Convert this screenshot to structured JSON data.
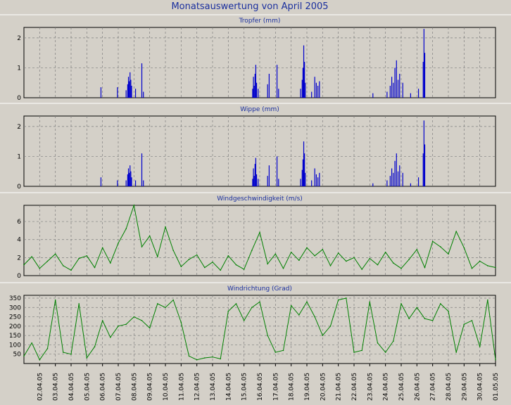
{
  "window": {
    "title": "Monatsauswertung von April 2005"
  },
  "colors": {
    "background": "#d4d0c8",
    "title": "#1a2f9e",
    "rain": "#0000cc",
    "wind": "#008000",
    "grid": "#7f7f7f"
  },
  "x_axis": {
    "labels": [
      "02.04.05",
      "03.04.05",
      "04.04.05",
      "05.04.05",
      "06.04.05",
      "07.04.05",
      "08.04.05",
      "09.04.05",
      "10.04.05",
      "11.04.05",
      "12.04.05",
      "13.04.05",
      "14.04.05",
      "15.04.05",
      "16.04.05",
      "17.04.05",
      "18.04.05",
      "19.04.05",
      "20.04.05",
      "21.04.05",
      "22.04.05",
      "23.04.05",
      "24.04.05",
      "25.04.05",
      "26.04.05",
      "27.04.05",
      "28.04.05",
      "29.04.05",
      "30.04.05",
      "01.05.05"
    ]
  },
  "chart_data": [
    {
      "type": "bar",
      "title": "Tropfer (mm)",
      "ylim": [
        0,
        2.35
      ],
      "yticks": [
        0,
        1,
        2
      ],
      "grid": true,
      "color": "#0000cc",
      "x_unit": "days since 01.04.05 00:00",
      "events": [
        [
          4.9,
          0.35
        ],
        [
          5.95,
          0.35
        ],
        [
          6.5,
          0.25
        ],
        [
          6.6,
          0.45
        ],
        [
          6.65,
          0.7
        ],
        [
          6.7,
          0.55
        ],
        [
          6.75,
          0.85
        ],
        [
          6.8,
          0.6
        ],
        [
          6.85,
          0.4
        ],
        [
          7.1,
          0.3
        ],
        [
          7.5,
          1.15
        ],
        [
          7.6,
          0.2
        ],
        [
          14.55,
          0.3
        ],
        [
          14.6,
          0.7
        ],
        [
          14.65,
          0.4
        ],
        [
          14.7,
          0.8
        ],
        [
          14.75,
          1.1
        ],
        [
          14.8,
          0.5
        ],
        [
          14.9,
          0.3
        ],
        [
          15.5,
          0.45
        ],
        [
          15.6,
          0.8
        ],
        [
          16.1,
          1.1
        ],
        [
          16.2,
          0.3
        ],
        [
          17.6,
          0.3
        ],
        [
          17.7,
          0.6
        ],
        [
          17.75,
          1.0
        ],
        [
          17.8,
          1.75
        ],
        [
          17.85,
          1.2
        ],
        [
          17.9,
          0.5
        ],
        [
          18.3,
          0.2
        ],
        [
          18.5,
          0.7
        ],
        [
          18.6,
          0.5
        ],
        [
          18.7,
          0.4
        ],
        [
          18.8,
          0.55
        ],
        [
          22.2,
          0.15
        ],
        [
          23.1,
          0.2
        ],
        [
          23.3,
          0.4
        ],
        [
          23.4,
          0.7
        ],
        [
          23.5,
          0.5
        ],
        [
          23.6,
          1.0
        ],
        [
          23.7,
          1.25
        ],
        [
          23.8,
          0.6
        ],
        [
          23.9,
          0.8
        ],
        [
          24.1,
          0.5
        ],
        [
          24.6,
          0.15
        ],
        [
          25.1,
          0.3
        ],
        [
          25.4,
          1.2
        ],
        [
          25.45,
          2.3
        ],
        [
          25.5,
          1.5
        ]
      ]
    },
    {
      "type": "bar",
      "title": "Wippe (mm)",
      "ylim": [
        0,
        2.35
      ],
      "yticks": [
        0,
        1,
        2
      ],
      "grid": true,
      "color": "#0000cc",
      "x_unit": "days since 01.04.05 00:00",
      "events": [
        [
          4.9,
          0.3
        ],
        [
          5.95,
          0.2
        ],
        [
          6.5,
          0.2
        ],
        [
          6.6,
          0.4
        ],
        [
          6.65,
          0.6
        ],
        [
          6.7,
          0.45
        ],
        [
          6.75,
          0.7
        ],
        [
          6.8,
          0.5
        ],
        [
          6.85,
          0.3
        ],
        [
          7.1,
          0.2
        ],
        [
          7.5,
          1.1
        ],
        [
          7.6,
          0.2
        ],
        [
          14.55,
          0.25
        ],
        [
          14.6,
          0.6
        ],
        [
          14.65,
          0.35
        ],
        [
          14.7,
          0.75
        ],
        [
          14.75,
          0.95
        ],
        [
          14.8,
          0.4
        ],
        [
          14.9,
          0.25
        ],
        [
          15.5,
          0.35
        ],
        [
          15.6,
          0.7
        ],
        [
          16.1,
          1.0
        ],
        [
          16.2,
          0.25
        ],
        [
          17.6,
          0.25
        ],
        [
          17.7,
          0.55
        ],
        [
          17.75,
          0.9
        ],
        [
          17.8,
          1.5
        ],
        [
          17.85,
          1.1
        ],
        [
          17.9,
          0.45
        ],
        [
          18.3,
          0.2
        ],
        [
          18.5,
          0.6
        ],
        [
          18.6,
          0.4
        ],
        [
          18.7,
          0.3
        ],
        [
          18.8,
          0.45
        ],
        [
          22.2,
          0.1
        ],
        [
          23.1,
          0.2
        ],
        [
          23.3,
          0.35
        ],
        [
          23.4,
          0.6
        ],
        [
          23.5,
          0.45
        ],
        [
          23.6,
          0.85
        ],
        [
          23.7,
          1.1
        ],
        [
          23.8,
          0.5
        ],
        [
          23.9,
          0.7
        ],
        [
          24.1,
          0.45
        ],
        [
          24.6,
          0.1
        ],
        [
          25.1,
          0.3
        ],
        [
          25.4,
          1.1
        ],
        [
          25.45,
          2.2
        ],
        [
          25.5,
          1.4
        ]
      ]
    },
    {
      "type": "line",
      "title": "Windgeschwindigkeit (m/s)",
      "ylim": [
        0,
        7.8
      ],
      "yticks": [
        0,
        2,
        4,
        6
      ],
      "grid": true,
      "color": "#008000",
      "x_unit": "days since 01.04.05 00:00",
      "x": [
        0,
        0.5,
        1,
        1.5,
        2,
        2.5,
        3,
        3.5,
        4,
        4.5,
        5,
        5.5,
        6,
        6.5,
        7,
        7.5,
        8,
        8.5,
        9,
        9.5,
        10,
        10.5,
        11,
        11.5,
        12,
        12.5,
        13,
        13.5,
        14,
        14.5,
        15,
        15.5,
        16,
        16.5,
        17,
        17.5,
        18,
        18.5,
        19,
        19.5,
        20,
        20.5,
        21,
        21.5,
        22,
        22.5,
        23,
        23.5,
        24,
        24.5,
        25,
        25.5,
        26,
        26.5,
        27,
        27.5,
        28,
        28.5,
        29,
        29.5,
        30
      ],
      "values": [
        1.2,
        2.1,
        0.8,
        1.6,
        2.4,
        1.1,
        0.6,
        1.9,
        2.2,
        0.9,
        3.1,
        1.4,
        3.6,
        5.2,
        7.8,
        3.2,
        4.4,
        2.1,
        5.4,
        2.8,
        1.0,
        1.8,
        2.3,
        0.9,
        1.5,
        0.6,
        2.2,
        1.2,
        0.7,
        2.8,
        4.8,
        1.3,
        2.4,
        0.8,
        2.6,
        1.7,
        3.1,
        2.2,
        2.9,
        1.1,
        2.5,
        1.6,
        2.0,
        0.7,
        1.9,
        1.2,
        2.6,
        1.4,
        0.8,
        1.8,
        2.9,
        0.9,
        3.8,
        3.2,
        2.4,
        4.9,
        3.1,
        0.8,
        1.6,
        1.1,
        0.9
      ]
    },
    {
      "type": "line",
      "title": "Windrichtung (Grad)",
      "ylim": [
        0,
        365
      ],
      "yticks": [
        50,
        100,
        150,
        200,
        250,
        300,
        350
      ],
      "grid": true,
      "color": "#008000",
      "x_unit": "days since 01.04.05 00:00",
      "x": [
        0,
        0.5,
        1,
        1.5,
        2,
        2.5,
        3,
        3.5,
        4,
        4.5,
        5,
        5.5,
        6,
        6.5,
        7,
        7.5,
        8,
        8.5,
        9,
        9.5,
        10,
        10.5,
        11,
        11.5,
        12,
        12.5,
        13,
        13.5,
        14,
        14.5,
        15,
        15.5,
        16,
        16.5,
        17,
        17.5,
        18,
        18.5,
        19,
        19.5,
        20,
        20.5,
        21,
        21.5,
        22,
        22.5,
        23,
        23.5,
        24,
        24.5,
        25,
        25.5,
        26,
        26.5,
        27,
        27.5,
        28,
        28.5,
        29,
        29.5,
        30
      ],
      "values": [
        40,
        110,
        20,
        80,
        340,
        60,
        50,
        320,
        30,
        90,
        230,
        140,
        200,
        210,
        250,
        230,
        190,
        320,
        300,
        340,
        220,
        40,
        20,
        30,
        35,
        25,
        280,
        320,
        230,
        300,
        330,
        150,
        60,
        70,
        310,
        260,
        330,
        250,
        150,
        200,
        340,
        350,
        60,
        70,
        330,
        110,
        60,
        120,
        320,
        240,
        300,
        240,
        230,
        320,
        280,
        60,
        210,
        230,
        90,
        340,
        20
      ]
    }
  ]
}
